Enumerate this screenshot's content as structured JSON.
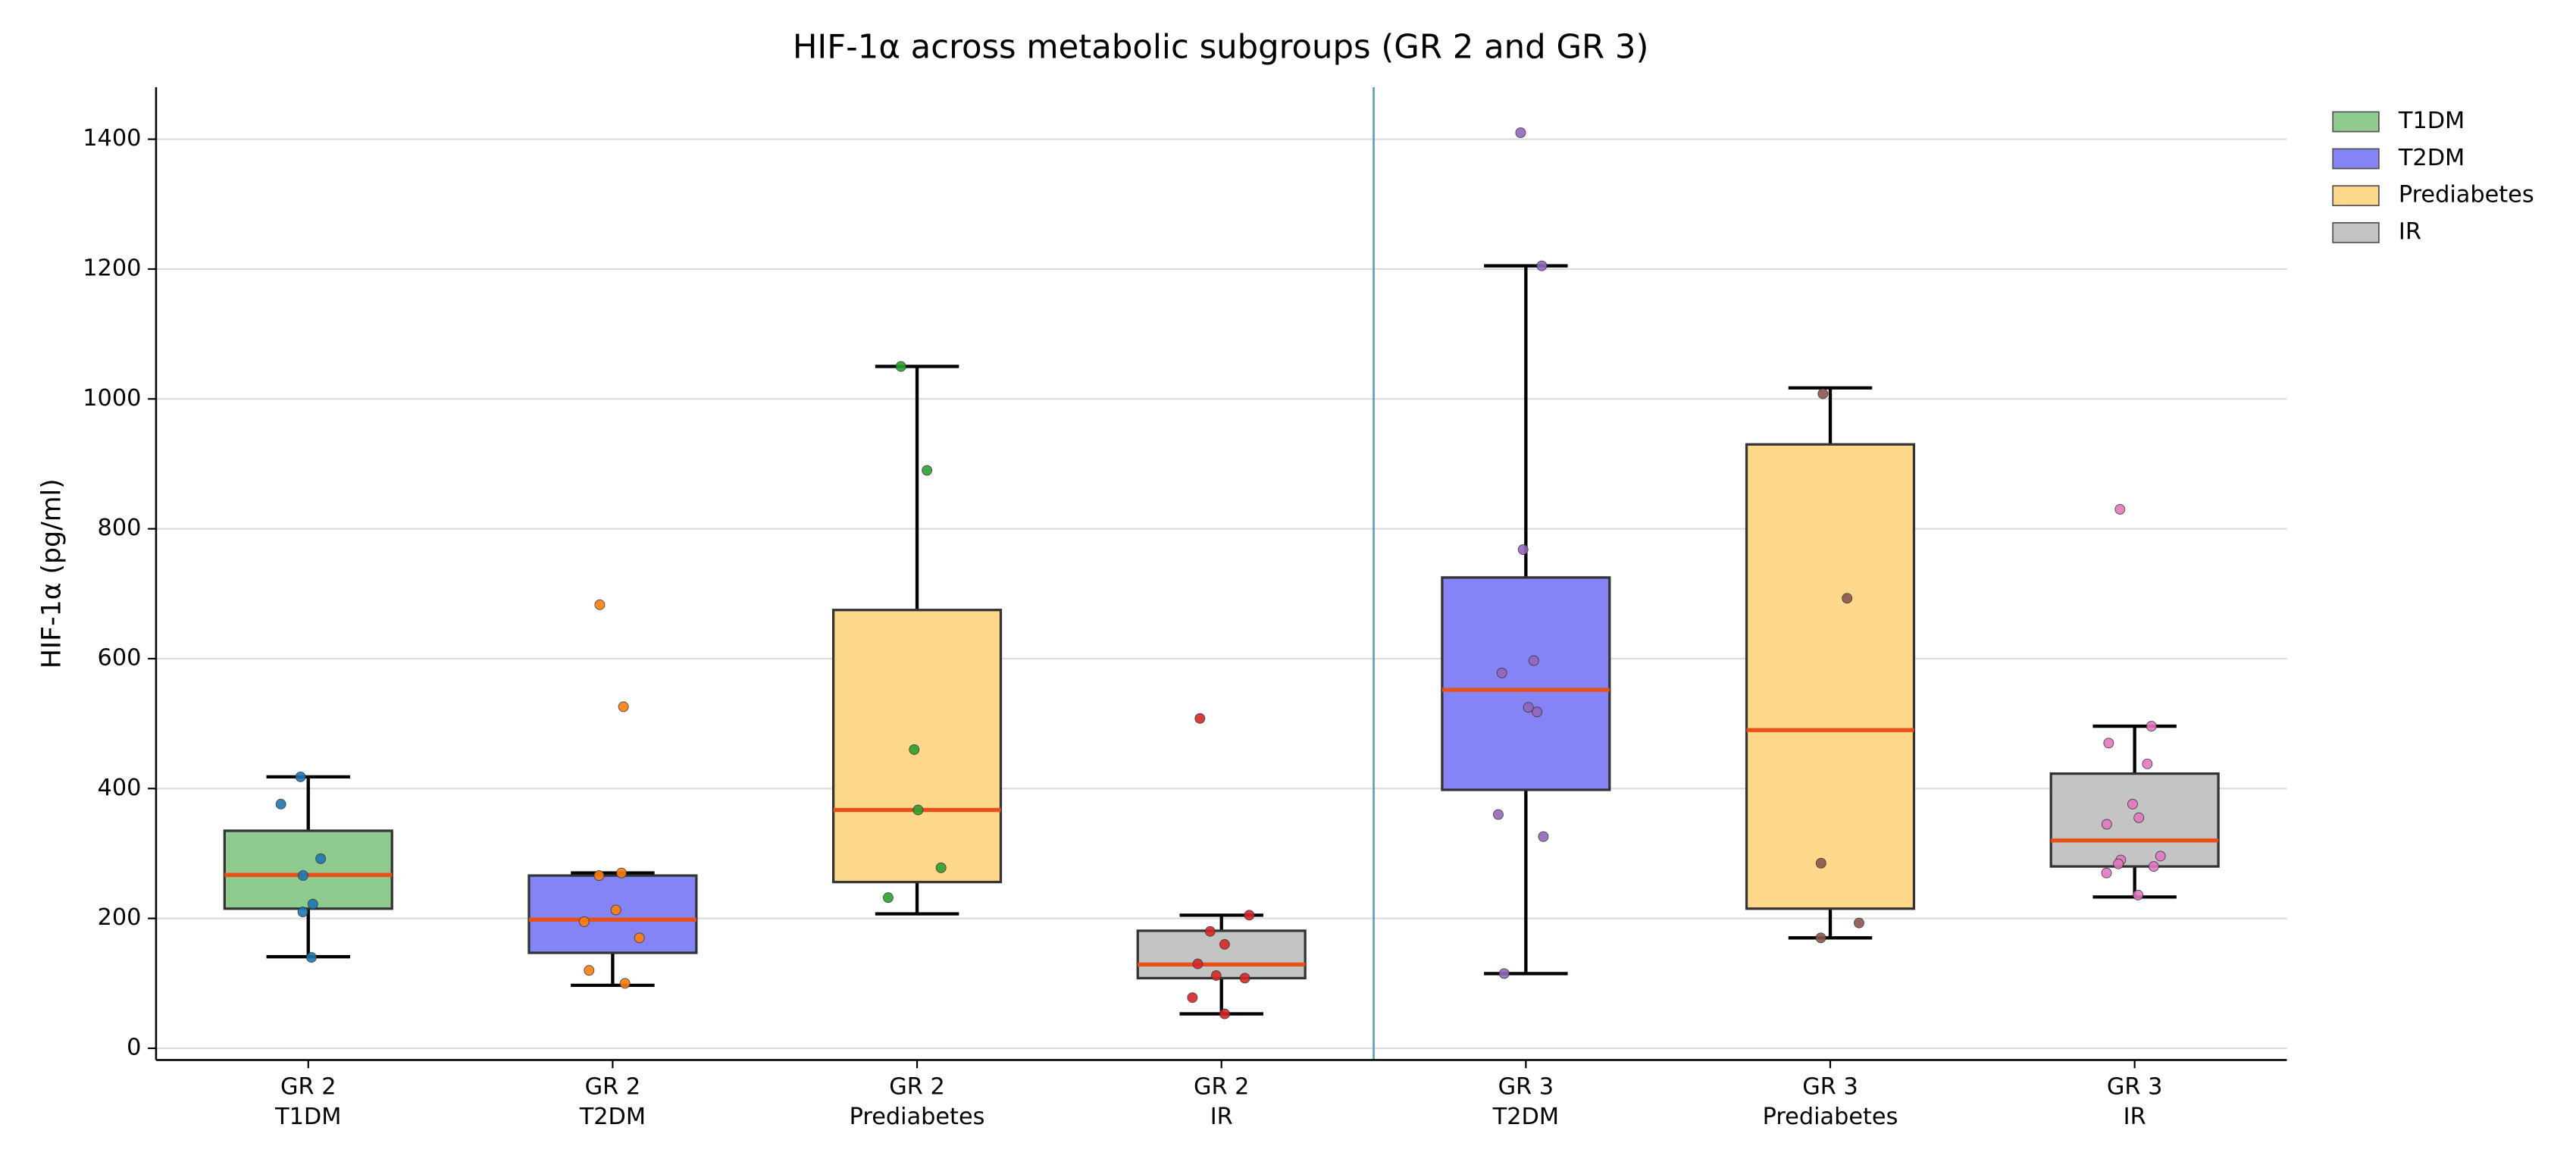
{
  "chart_data": {
    "type": "box",
    "title": "HIF-1α across metabolic subgroups (GR 2 and GR 3)",
    "y_label": "HIF-1α (pg/ml)",
    "categories": [
      [
        "GR 2",
        "T1DM"
      ],
      [
        "GR 2",
        "T2DM"
      ],
      [
        "GR 2",
        "Prediabetes"
      ],
      [
        "GR 2",
        "IR"
      ],
      [
        "GR 3",
        "T2DM"
      ],
      [
        "GR 3",
        "Prediabetes"
      ],
      [
        "GR 3",
        "IR"
      ]
    ],
    "ylim": [
      -18,
      1480
    ],
    "yticks": [
      0,
      200,
      400,
      600,
      800,
      1000,
      1200,
      1400
    ],
    "grid": true,
    "legend_position": "outside-upper-right",
    "median_color": "#e8501a",
    "legend": [
      {
        "name": "T1DM",
        "color": "#8fca8f"
      },
      {
        "name": "T2DM",
        "color": "#8484f7"
      },
      {
        "name": "Prediabetes",
        "color": "#fdd78a"
      },
      {
        "name": "IR",
        "color": "#c4c4c4"
      }
    ],
    "boxes": [
      {
        "whislo": 141,
        "q1": 215,
        "med": 267,
        "q3": 335,
        "whishi": 418,
        "color": "#8fca8f",
        "point_color": "#1f77b4",
        "points": [
          418,
          376,
          292,
          266,
          222,
          210,
          140
        ]
      },
      {
        "whislo": 97,
        "q1": 147,
        "med": 198,
        "q3": 266,
        "whishi": 270,
        "color": "#8484f7",
        "point_color": "#ff7f0e",
        "points": [
          683,
          526,
          270,
          266,
          213,
          195,
          170,
          120,
          100
        ]
      },
      {
        "whislo": 207,
        "q1": 256,
        "med": 367,
        "q3": 675,
        "whishi": 1050,
        "color": "#fdd78a",
        "point_color": "#2ca02c",
        "points": [
          1050,
          890,
          460,
          367,
          278,
          232
        ]
      },
      {
        "whislo": 53,
        "q1": 108,
        "med": 129,
        "q3": 181,
        "whishi": 205,
        "color": "#c4c4c4",
        "point_color": "#d62728",
        "points": [
          508,
          205,
          180,
          160,
          130,
          112,
          108,
          78,
          53
        ]
      },
      {
        "whislo": 115,
        "q1": 398,
        "med": 552,
        "q3": 725,
        "whishi": 1205,
        "color": "#8484f7",
        "point_color": "#9467bd",
        "points": [
          1410,
          1205,
          768,
          597,
          578,
          525,
          518,
          360,
          326,
          115
        ]
      },
      {
        "whislo": 170,
        "q1": 215,
        "med": 490,
        "q3": 930,
        "whishi": 1017,
        "color": "#fdd78a",
        "point_color": "#8c564b",
        "points": [
          1008,
          693,
          285,
          193,
          170
        ]
      },
      {
        "whislo": 233,
        "q1": 280,
        "med": 320,
        "q3": 423,
        "whishi": 496,
        "color": "#c4c4c4",
        "point_color": "#e377c2",
        "points": [
          830,
          496,
          470,
          438,
          376,
          355,
          345,
          296,
          290,
          284,
          280,
          270,
          236
        ]
      }
    ]
  }
}
